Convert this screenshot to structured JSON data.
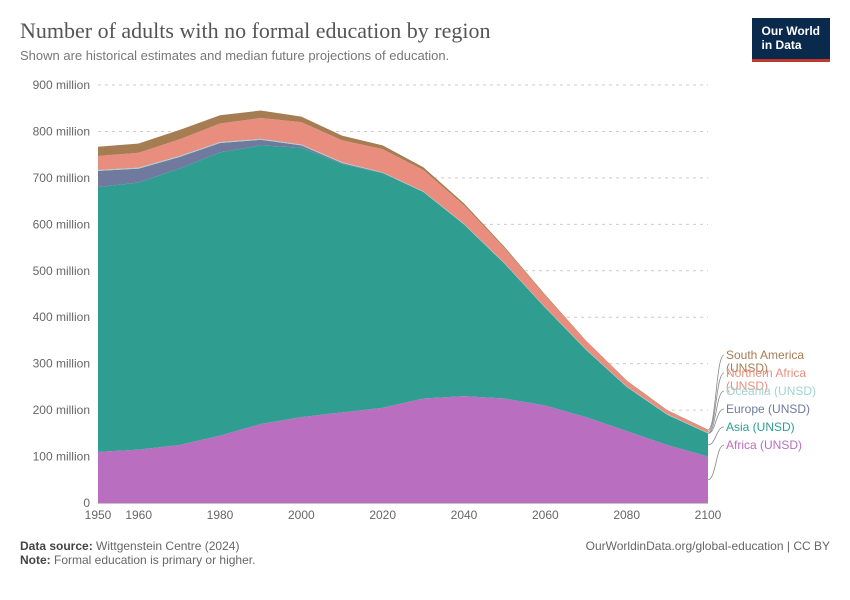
{
  "header": {
    "title": "Number of adults with no formal education by region",
    "subtitle": "Shown are historical estimates and median future projections of education.",
    "logo_line1": "Our World",
    "logo_line2": "in Data"
  },
  "chart": {
    "type": "area",
    "background_color": "#ffffff",
    "grid_color": "#cccccc",
    "title_fontsize": 22,
    "subtitle_fontsize": 13,
    "axis_fontsize": 12,
    "x": {
      "min": 1950,
      "max": 2100,
      "ticks": [
        1950,
        1960,
        1980,
        2000,
        2020,
        2040,
        2060,
        2080,
        2100
      ]
    },
    "y": {
      "min": 0,
      "max": 900,
      "unit": "million",
      "ticks": [
        0,
        100,
        200,
        300,
        400,
        500,
        600,
        700,
        800,
        900
      ],
      "tick_labels": [
        "0",
        "100 million",
        "200 million",
        "300 million",
        "400 million",
        "500 million",
        "600 million",
        "700 million",
        "800 million",
        "900 million"
      ]
    },
    "x_values": [
      1950,
      1960,
      1970,
      1980,
      1990,
      2000,
      2010,
      2020,
      2030,
      2040,
      2050,
      2060,
      2070,
      2080,
      2090,
      2100
    ],
    "series": [
      {
        "name": "Africa (UNSD)",
        "color": "#b96ebf",
        "values": [
          110,
          115,
          125,
          145,
          170,
          185,
          195,
          205,
          225,
          230,
          225,
          210,
          185,
          155,
          125,
          100
        ]
      },
      {
        "name": "Asia (UNSD)",
        "color": "#2f9e91",
        "values": [
          570,
          575,
          595,
          610,
          600,
          580,
          535,
          505,
          445,
          370,
          290,
          210,
          145,
          95,
          65,
          50
        ]
      },
      {
        "name": "Europe (UNSD)",
        "color": "#6f7a9e",
        "values": [
          35,
          30,
          25,
          20,
          12,
          5,
          2,
          1,
          0,
          0,
          0,
          0,
          0,
          0,
          0,
          0
        ]
      },
      {
        "name": "Oceania (UNSD)",
        "color": "#9fd4d1",
        "values": [
          2,
          2,
          2,
          2,
          2,
          2,
          2,
          1,
          1,
          1,
          1,
          1,
          1,
          1,
          1,
          1
        ]
      },
      {
        "name": "Northern Africa (UNSD)",
        "color": "#e98e7f",
        "values": [
          30,
          32,
          36,
          40,
          45,
          48,
          47,
          50,
          46,
          40,
          32,
          25,
          18,
          12,
          8,
          6
        ]
      },
      {
        "name": "South America (UNSD)",
        "color": "#a67c52",
        "values": [
          20,
          20,
          20,
          18,
          16,
          12,
          10,
          8,
          6,
          4,
          3,
          2,
          1,
          1,
          1,
          1
        ]
      }
    ],
    "legend": [
      {
        "label": "South America (UNSD)",
        "color": "#a67c52"
      },
      {
        "label": "Northern Africa (UNSD)",
        "color": "#e98e7f"
      },
      {
        "label": "Oceania (UNSD)",
        "color": "#9fd4d1"
      },
      {
        "label": "Europe (UNSD)",
        "color": "#6f7a9e"
      },
      {
        "label": "Asia (UNSD)",
        "color": "#2f9e91"
      },
      {
        "label": "Africa (UNSD)",
        "color": "#b96ebf"
      }
    ]
  },
  "footer": {
    "source_label": "Data source:",
    "source_value": "Wittgenstein Centre (2024)",
    "note_label": "Note:",
    "note_value": "Formal education is primary or higher.",
    "attribution": "OurWorldinData.org/global-education | CC BY"
  }
}
